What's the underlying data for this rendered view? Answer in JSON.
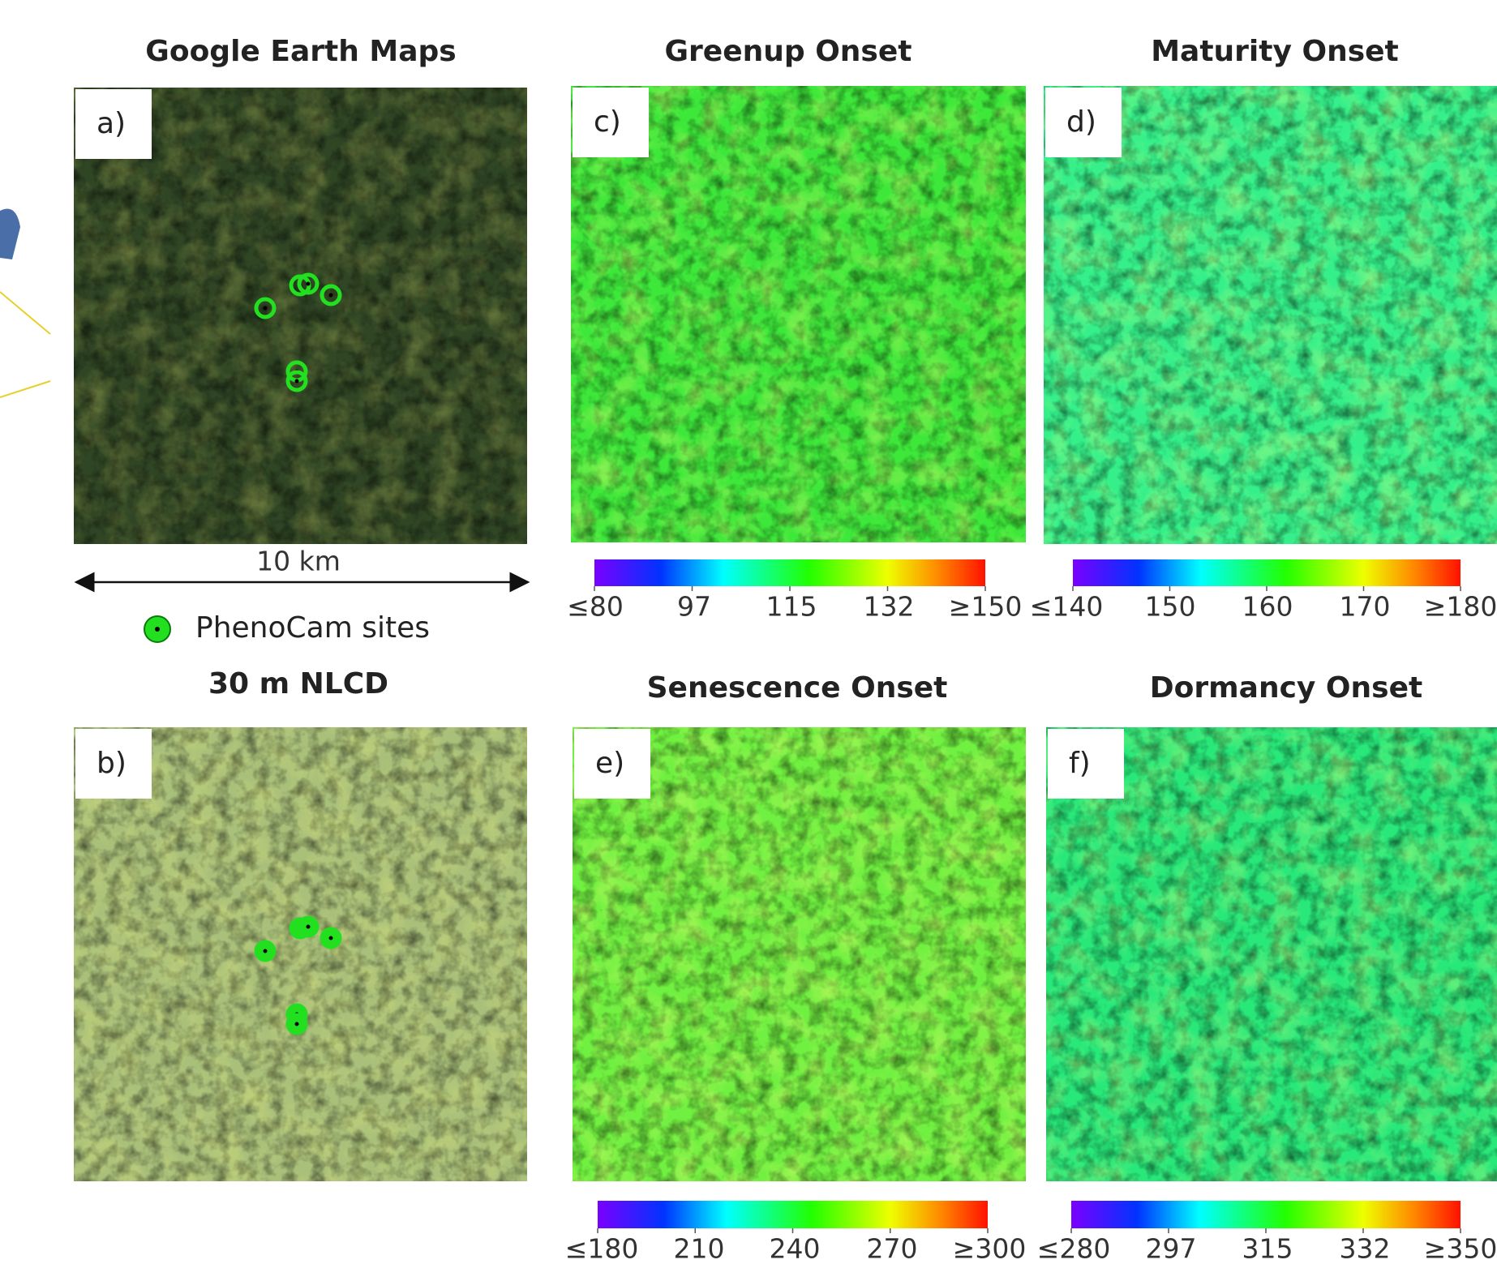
{
  "panels": [
    {
      "label": "a)",
      "title": "Google Earth Maps"
    },
    {
      "label": "b)",
      "title": "30 m NLCD"
    },
    {
      "label": "c)",
      "title": "Greenup Onset",
      "colorbar": [
        "≤80",
        "97",
        "115",
        "132",
        "≥150"
      ]
    },
    {
      "label": "d)",
      "title": "Maturity Onset",
      "colorbar": [
        "≤140",
        "150",
        "160",
        "170",
        "≥180"
      ]
    },
    {
      "label": "e)",
      "title": "Senescence Onset",
      "colorbar": [
        "≤180",
        "210",
        "240",
        "270",
        "≥300"
      ]
    },
    {
      "label": "f)",
      "title": "Dormancy Onset",
      "colorbar": [
        "≤280",
        "297",
        "315",
        "332",
        "≥350"
      ]
    }
  ],
  "scale_bar": "10 km",
  "legend": "PhenoCam sites"
}
